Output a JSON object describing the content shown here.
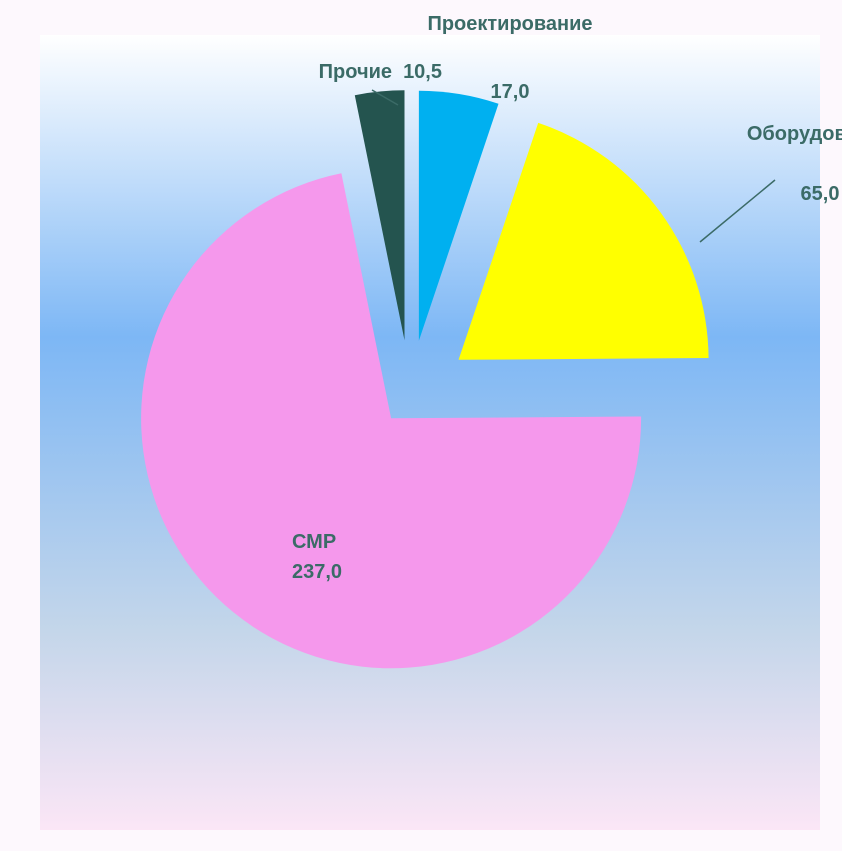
{
  "chart_data": {
    "type": "pie",
    "categories": [
      "Проектирование",
      "Оборудование",
      "СМР",
      "Прочие"
    ],
    "values": [
      17.0,
      65.0,
      237.0,
      10.5
    ],
    "value_labels": [
      "17,0",
      "65,0",
      "237,0",
      "10,5"
    ],
    "colors": [
      "#00b0f0",
      "#ffff00",
      "#f598ec",
      "#24544f"
    ]
  }
}
